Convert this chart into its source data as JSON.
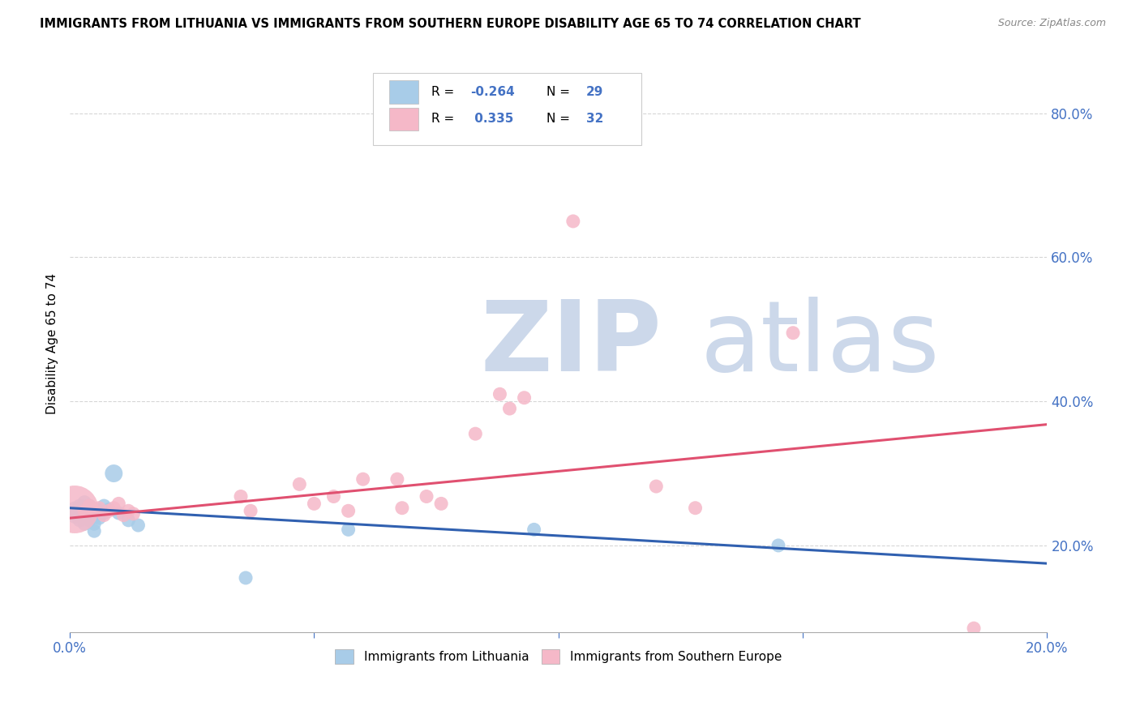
{
  "title": "IMMIGRANTS FROM LITHUANIA VS IMMIGRANTS FROM SOUTHERN EUROPE DISABILITY AGE 65 TO 74 CORRELATION CHART",
  "source": "Source: ZipAtlas.com",
  "ylabel": "Disability Age 65 to 74",
  "xlim": [
    0.0,
    0.2
  ],
  "ylim": [
    0.08,
    0.88
  ],
  "xticks": [
    0.0,
    0.05,
    0.1,
    0.15,
    0.2
  ],
  "yticks": [
    0.2,
    0.4,
    0.6,
    0.8
  ],
  "color_blue": "#a8cce8",
  "color_pink": "#f5b8c8",
  "line_blue": "#3060b0",
  "line_pink": "#e05070",
  "watermark_zip": "ZIP",
  "watermark_atlas": "atlas",
  "watermark_color": "#ccd8ea",
  "blue_points": [
    [
      0.001,
      0.25
    ],
    [
      0.001,
      0.24
    ],
    [
      0.002,
      0.255
    ],
    [
      0.002,
      0.245
    ],
    [
      0.002,
      0.235
    ],
    [
      0.003,
      0.26
    ],
    [
      0.003,
      0.25
    ],
    [
      0.003,
      0.24
    ],
    [
      0.003,
      0.23
    ],
    [
      0.004,
      0.255
    ],
    [
      0.004,
      0.245
    ],
    [
      0.004,
      0.235
    ],
    [
      0.005,
      0.25
    ],
    [
      0.005,
      0.24
    ],
    [
      0.005,
      0.23
    ],
    [
      0.005,
      0.22
    ],
    [
      0.006,
      0.248
    ],
    [
      0.006,
      0.238
    ],
    [
      0.007,
      0.255
    ],
    [
      0.007,
      0.245
    ],
    [
      0.008,
      0.25
    ],
    [
      0.009,
      0.3
    ],
    [
      0.01,
      0.245
    ],
    [
      0.012,
      0.235
    ],
    [
      0.014,
      0.228
    ],
    [
      0.036,
      0.155
    ],
    [
      0.057,
      0.222
    ],
    [
      0.095,
      0.222
    ],
    [
      0.145,
      0.2
    ]
  ],
  "blue_sizes": [
    200,
    150,
    150,
    150,
    150,
    150,
    150,
    150,
    150,
    150,
    150,
    150,
    150,
    150,
    150,
    150,
    150,
    150,
    150,
    150,
    150,
    250,
    150,
    150,
    150,
    150,
    150,
    150,
    150
  ],
  "pink_points": [
    [
      0.001,
      0.25
    ],
    [
      0.003,
      0.248
    ],
    [
      0.004,
      0.255
    ],
    [
      0.005,
      0.248
    ],
    [
      0.006,
      0.252
    ],
    [
      0.007,
      0.242
    ],
    [
      0.008,
      0.248
    ],
    [
      0.009,
      0.252
    ],
    [
      0.01,
      0.258
    ],
    [
      0.011,
      0.242
    ],
    [
      0.012,
      0.248
    ],
    [
      0.013,
      0.244
    ],
    [
      0.035,
      0.268
    ],
    [
      0.037,
      0.248
    ],
    [
      0.047,
      0.285
    ],
    [
      0.05,
      0.258
    ],
    [
      0.054,
      0.268
    ],
    [
      0.057,
      0.248
    ],
    [
      0.06,
      0.292
    ],
    [
      0.067,
      0.292
    ],
    [
      0.068,
      0.252
    ],
    [
      0.073,
      0.268
    ],
    [
      0.076,
      0.258
    ],
    [
      0.083,
      0.355
    ],
    [
      0.088,
      0.41
    ],
    [
      0.09,
      0.39
    ],
    [
      0.093,
      0.405
    ],
    [
      0.103,
      0.65
    ],
    [
      0.12,
      0.282
    ],
    [
      0.128,
      0.252
    ],
    [
      0.148,
      0.495
    ],
    [
      0.185,
      0.085
    ]
  ],
  "pink_sizes": [
    1800,
    150,
    150,
    150,
    150,
    150,
    150,
    150,
    150,
    150,
    150,
    150,
    150,
    150,
    150,
    150,
    150,
    150,
    150,
    150,
    150,
    150,
    150,
    150,
    150,
    150,
    150,
    150,
    150,
    150,
    150,
    150
  ],
  "blue_line_x": [
    0.0,
    0.2
  ],
  "blue_line_y": [
    0.252,
    0.175
  ],
  "pink_line_x": [
    0.0,
    0.2
  ],
  "pink_line_y": [
    0.238,
    0.368
  ]
}
